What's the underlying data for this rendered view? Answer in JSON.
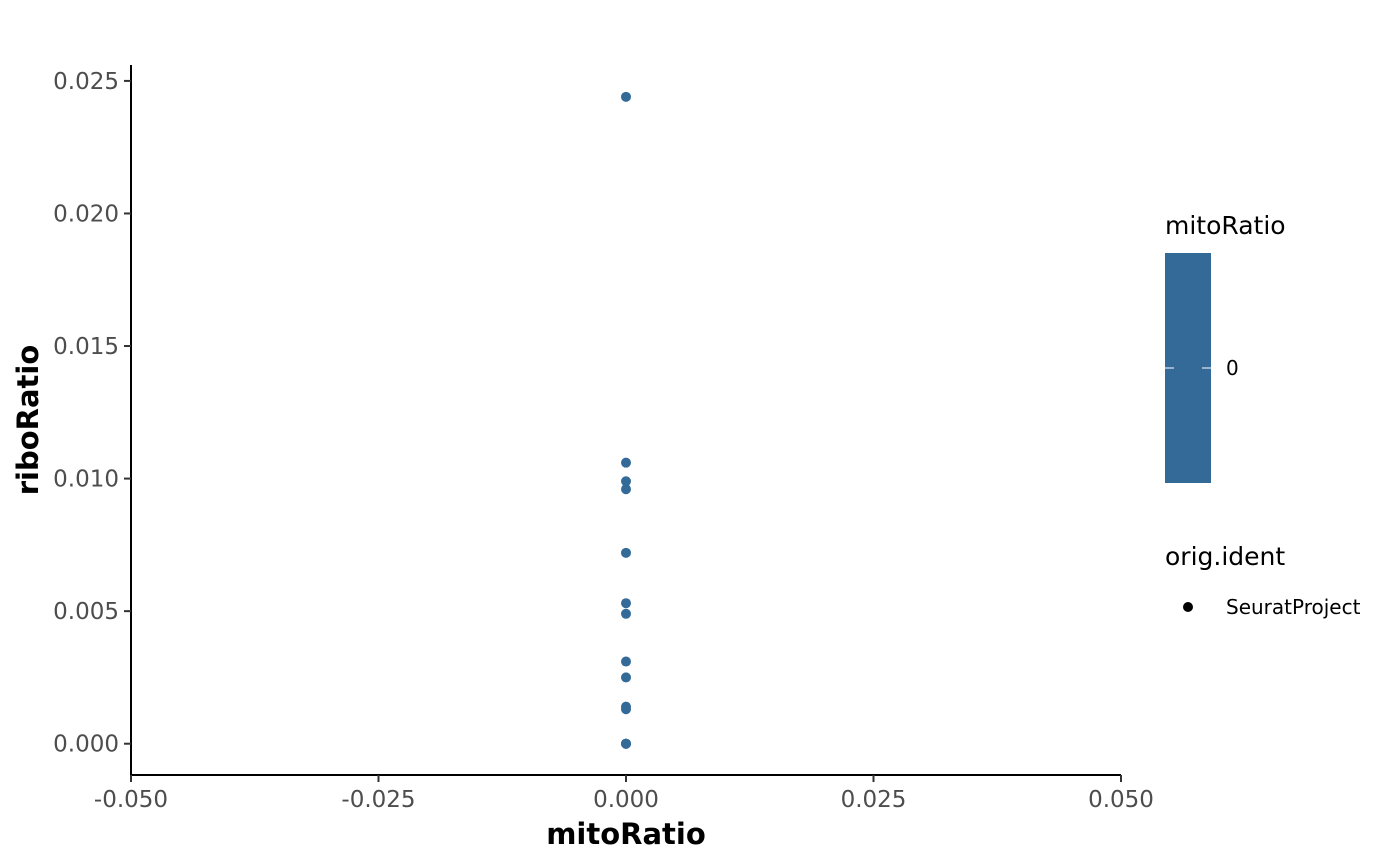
{
  "chart_data": {
    "type": "scatter",
    "xlabel": "mitoRatio",
    "ylabel": "riboRatio",
    "xlim": [
      -0.05,
      0.05
    ],
    "ylim": [
      -0.00118,
      0.0256
    ],
    "x_ticks": [
      -0.05,
      -0.025,
      0.0,
      0.025,
      0.05
    ],
    "x_tick_labels": [
      "-0.050",
      "-0.025",
      "0.000",
      "0.025",
      "0.050"
    ],
    "y_ticks": [
      0.0,
      0.005,
      0.01,
      0.015,
      0.02,
      0.025
    ],
    "y_tick_labels": [
      "0.000",
      "0.005",
      "0.010",
      "0.015",
      "0.020",
      "0.025"
    ],
    "grid": false,
    "series": [
      {
        "x": [
          0,
          0,
          0,
          0,
          0,
          0,
          0,
          0,
          0,
          0,
          0,
          0,
          0,
          0,
          0
        ],
        "y": [
          0.0244,
          0.0106,
          0.0099,
          0.0096,
          0.0072,
          0.0053,
          0.0049,
          0.0031,
          0.0025,
          0.0014,
          0.0013,
          0.0,
          0.0,
          0.0,
          0.0
        ],
        "color": "#336a98"
      }
    ],
    "legends": [
      {
        "title": "mitoRatio",
        "type": "colorbar",
        "color": "#336a98",
        "labels": [
          "0"
        ]
      },
      {
        "title": "orig.ident",
        "type": "shape",
        "labels": [
          "SeuratProject"
        ]
      }
    ],
    "legend_placement": "right"
  }
}
